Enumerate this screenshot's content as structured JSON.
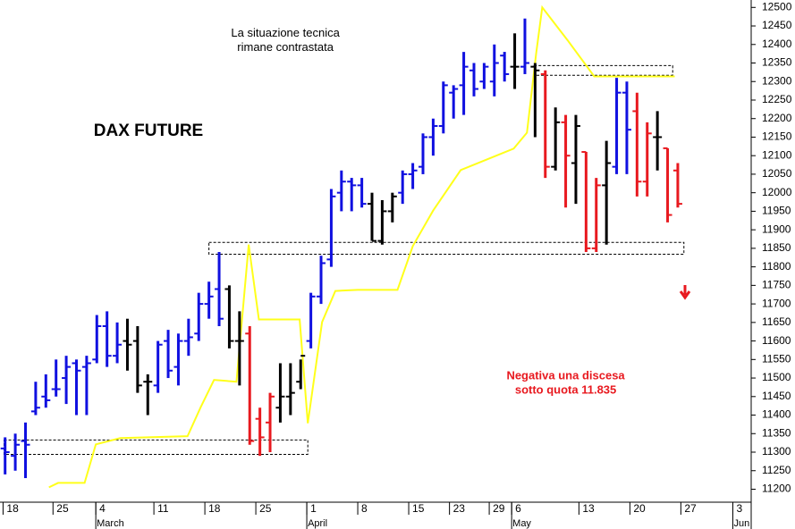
{
  "chart_data": {
    "type": "ohlc",
    "title": "DAX FUTURE",
    "annotations": [
      {
        "lines": [
          "La situazione tecnica",
          "rimane contrastata"
        ],
        "color": "#000000",
        "x": 27.5,
        "y": 12430
      },
      {
        "lines": [
          "Negativa una discesa",
          "sotto quota 11.835"
        ],
        "color": "#e8191f",
        "x": 55,
        "y": 11505
      }
    ],
    "xlim": [
      -0.5,
      73.2
    ],
    "ylim": [
      11165,
      12520
    ],
    "yticks": [
      11200,
      11250,
      11300,
      11350,
      11400,
      11450,
      11500,
      11550,
      11600,
      11650,
      11700,
      11750,
      11800,
      11850,
      11900,
      11950,
      12000,
      12050,
      12100,
      12150,
      12200,
      12250,
      12300,
      12350,
      12400,
      12450,
      12500
    ],
    "xticks": [
      {
        "value": -0.2,
        "label": "18"
      },
      {
        "value": 4.7,
        "label": "25"
      },
      {
        "value": 8.9,
        "label": "4"
      },
      {
        "value": 14.6,
        "label": "11"
      },
      {
        "value": 19.6,
        "label": "18"
      },
      {
        "value": 24.6,
        "label": "25"
      },
      {
        "value": 29.6,
        "label": "1"
      },
      {
        "value": 34.6,
        "label": "8"
      },
      {
        "value": 39.6,
        "label": "15"
      },
      {
        "value": 43.6,
        "label": "23"
      },
      {
        "value": 47.5,
        "label": "29"
      },
      {
        "value": 49.7,
        "label": "6"
      },
      {
        "value": 56.3,
        "label": "13"
      },
      {
        "value": 61.3,
        "label": "20"
      },
      {
        "value": 66.3,
        "label": "27"
      },
      {
        "value": 71.4,
        "label": "3"
      }
    ],
    "months": [
      {
        "value": 8.9,
        "label": "March"
      },
      {
        "value": 29.6,
        "label": "April"
      },
      {
        "value": 49.7,
        "label": "May"
      },
      {
        "value": 71.4,
        "label": "Jun"
      }
    ],
    "bars": [
      [
        11310,
        11340,
        11240,
        11300,
        "#1010e0"
      ],
      [
        11290,
        11350,
        11250,
        11320,
        "#1010e0"
      ],
      [
        11330,
        11380,
        11230,
        11320,
        "#1010e0"
      ],
      [
        11410,
        11490,
        11400,
        11420,
        "#1010e0"
      ],
      [
        11450,
        11510,
        11420,
        11440,
        "#1010e0"
      ],
      [
        11470,
        11550,
        11450,
        11470,
        "#1010e0"
      ],
      [
        11500,
        11560,
        11430,
        11530,
        "#1010e0"
      ],
      [
        11540,
        11550,
        11400,
        11520,
        "#1010e0"
      ],
      [
        11530,
        11560,
        11400,
        11540,
        "#1010e0"
      ],
      [
        11550,
        11670,
        11540,
        11640,
        "#1010e0"
      ],
      [
        11640,
        11680,
        11530,
        11560,
        "#1010e0"
      ],
      [
        11560,
        11650,
        11540,
        11590,
        "#1010e0"
      ],
      [
        11600,
        11660,
        11520,
        11590,
        "#000000"
      ],
      [
        11600,
        11640,
        11460,
        11480,
        "#000000"
      ],
      [
        11490,
        11510,
        11400,
        11490,
        "#000000"
      ],
      [
        11480,
        11600,
        11460,
        11590,
        "#1010e0"
      ],
      [
        11600,
        11630,
        11500,
        11520,
        "#1010e0"
      ],
      [
        11530,
        11620,
        11480,
        11600,
        "#1010e0"
      ],
      [
        11600,
        11660,
        11560,
        11610,
        "#1010e0"
      ],
      [
        11620,
        11730,
        11600,
        11700,
        "#1010e0"
      ],
      [
        11700,
        11760,
        11660,
        11720,
        "#1010e0"
      ],
      [
        11740,
        11840,
        11640,
        11660,
        "#1010e0"
      ],
      [
        11740,
        11750,
        11580,
        11600,
        "#000000"
      ],
      [
        11600,
        11680,
        11480,
        11600,
        "#000000"
      ],
      [
        11620,
        11640,
        11320,
        11330,
        "#e8191f"
      ],
      [
        11390,
        11420,
        11290,
        11340,
        "#e8191f"
      ],
      [
        11380,
        11460,
        11300,
        11450,
        "#e8191f"
      ],
      [
        11420,
        11540,
        11380,
        11450,
        "#000000"
      ],
      [
        11450,
        11540,
        11400,
        11460,
        "#000000"
      ],
      [
        11490,
        11550,
        11470,
        11560,
        "#000000"
      ],
      [
        11600,
        11730,
        11580,
        11720,
        "#1010e0"
      ],
      [
        11720,
        11830,
        11700,
        11810,
        "#1010e0"
      ],
      [
        11820,
        12010,
        11800,
        11990,
        "#1010e0"
      ],
      [
        12000,
        12060,
        11950,
        12030,
        "#1010e0"
      ],
      [
        12030,
        12040,
        11950,
        12020,
        "#1010e0"
      ],
      [
        12020,
        12040,
        11960,
        11970,
        "#1010e0"
      ],
      [
        11970,
        12000,
        11870,
        11870,
        "#000000"
      ],
      [
        11870,
        11980,
        11860,
        11950,
        "#000000"
      ],
      [
        11950,
        12000,
        11920,
        11990,
        "#000000"
      ],
      [
        12000,
        12060,
        11970,
        12050,
        "#1010e0"
      ],
      [
        12050,
        12080,
        12010,
        12060,
        "#1010e0"
      ],
      [
        12070,
        12160,
        12050,
        12150,
        "#1010e0"
      ],
      [
        12150,
        12200,
        12100,
        12180,
        "#1010e0"
      ],
      [
        12180,
        12300,
        12160,
        12290,
        "#1010e0"
      ],
      [
        12270,
        12290,
        12200,
        12280,
        "#1010e0"
      ],
      [
        12290,
        12380,
        12210,
        12340,
        "#1010e0"
      ],
      [
        12330,
        12350,
        12260,
        12280,
        "#1010e0"
      ],
      [
        12300,
        12350,
        12280,
        12340,
        "#1010e0"
      ],
      [
        12300,
        12400,
        12260,
        12350,
        "#1010e0"
      ],
      [
        12370,
        12380,
        12300,
        12320,
        "#1010e0"
      ],
      [
        12340,
        12430,
        12280,
        12340,
        "#000000"
      ],
      [
        12340,
        12470,
        12320,
        12350,
        "#1010e0"
      ],
      [
        12340,
        12350,
        12150,
        12330,
        "#000000"
      ],
      [
        12320,
        12330,
        12040,
        12070,
        "#e8191f"
      ],
      [
        12070,
        12230,
        12060,
        12190,
        "#000000"
      ],
      [
        12190,
        12210,
        11960,
        12100,
        "#e8191f"
      ],
      [
        12080,
        12210,
        11970,
        12180,
        "#000000"
      ],
      [
        12110,
        12110,
        11840,
        11850,
        "#e8191f"
      ],
      [
        11850,
        12040,
        11840,
        12020,
        "#e8191f"
      ],
      [
        12020,
        12140,
        11860,
        12080,
        "#000000"
      ],
      [
        12070,
        12310,
        12050,
        12270,
        "#1010e0"
      ],
      [
        12270,
        12300,
        12050,
        12170,
        "#1010e0"
      ],
      [
        12220,
        12270,
        11990,
        12030,
        "#e8191f"
      ],
      [
        12030,
        12190,
        11990,
        12160,
        "#e8191f"
      ],
      [
        12150,
        12220,
        12060,
        12150,
        "#000000"
      ],
      [
        12120,
        12120,
        11920,
        11940,
        "#e8191f"
      ],
      [
        12060,
        12080,
        11960,
        11970,
        "#e8191f"
      ]
    ],
    "line": {
      "color": "#ffff1a",
      "x": [
        4.3,
        5.2,
        7.8,
        8.9,
        11.3,
        17.9,
        19.2,
        20.5,
        22.7,
        23.9,
        24.9,
        28.9,
        29.7,
        31.1,
        32.4,
        34.6,
        38.5,
        40,
        42,
        44.7,
        47.3,
        49.9,
        51.2,
        52.1,
        52.7,
        55.2,
        57.8,
        65.7
      ],
      "values": [
        11205,
        11217,
        11217,
        11321,
        11338,
        11343,
        11422,
        11495,
        11490,
        11860,
        11658,
        11658,
        11378,
        11651,
        11735,
        11738,
        11738,
        11856,
        11952,
        12061,
        12090,
        12119,
        12162,
        12375,
        12500,
        12411,
        12314,
        12314
      ]
    },
    "zones": [
      {
        "x": [
          -0.1,
          29.7
        ],
        "y": [
          11294,
          11333
        ]
      },
      {
        "x": [
          20,
          66.6
        ],
        "y": [
          11834,
          11866
        ]
      },
      {
        "x": [
          51.9,
          65.5
        ],
        "y": [
          12317,
          12343
        ]
      }
    ]
  }
}
